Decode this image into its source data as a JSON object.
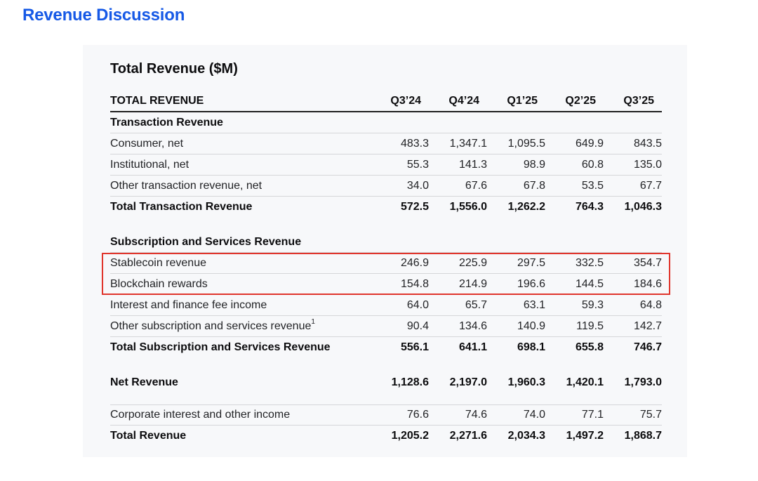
{
  "page": {
    "title": "Revenue Discussion",
    "title_color": "#1659e6"
  },
  "table": {
    "title": "Total Revenue ($M)",
    "header_label": "TOTAL REVENUE",
    "columns": [
      "Q3’24",
      "Q4’24",
      "Q1’25",
      "Q2’25",
      "Q3’25"
    ],
    "highlight_color": "#e0352c",
    "rows": [
      {
        "type": "section",
        "label": "Transaction Revenue"
      },
      {
        "type": "data",
        "label": "Consumer, net",
        "values": [
          "483.3",
          "1,347.1",
          "1,095.5",
          "649.9",
          "843.5"
        ]
      },
      {
        "type": "data",
        "label": "Institutional, net",
        "values": [
          "55.3",
          "141.3",
          "98.9",
          "60.8",
          "135.0"
        ]
      },
      {
        "type": "data",
        "label": "Other transaction revenue, net",
        "values": [
          "34.0",
          "67.6",
          "67.8",
          "53.5",
          "67.7"
        ]
      },
      {
        "type": "total",
        "label": "Total Transaction Revenue",
        "values": [
          "572.5",
          "1,556.0",
          "1,262.2",
          "764.3",
          "1,046.3"
        ]
      },
      {
        "type": "spacer"
      },
      {
        "type": "section",
        "label": "Subscription and Services Revenue"
      },
      {
        "type": "data",
        "label": "Stablecoin revenue",
        "values": [
          "246.9",
          "225.9",
          "297.5",
          "332.5",
          "354.7"
        ],
        "highlight": true
      },
      {
        "type": "data",
        "label": "Blockchain rewards",
        "values": [
          "154.8",
          "214.9",
          "196.6",
          "144.5",
          "184.6"
        ],
        "highlight": true
      },
      {
        "type": "data",
        "label": "Interest and finance fee income",
        "values": [
          "64.0",
          "65.7",
          "63.1",
          "59.3",
          "64.8"
        ]
      },
      {
        "type": "data",
        "label": "Other subscription and services revenue",
        "sup": "1",
        "values": [
          "90.4",
          "134.6",
          "140.9",
          "119.5",
          "142.7"
        ]
      },
      {
        "type": "total",
        "label": "Total Subscription and Services Revenue",
        "values": [
          "556.1",
          "641.1",
          "698.1",
          "655.8",
          "746.7"
        ]
      },
      {
        "type": "spacer"
      },
      {
        "type": "total",
        "label": "Net Revenue",
        "values": [
          "1,128.6",
          "2,197.0",
          "1,960.3",
          "1,420.1",
          "1,793.0"
        ]
      },
      {
        "type": "spacer_small"
      },
      {
        "type": "data",
        "label": "Corporate interest and other income",
        "values": [
          "76.6",
          "74.6",
          "74.0",
          "77.1",
          "75.7"
        ],
        "top_border": true
      },
      {
        "type": "total",
        "label": "Total Revenue",
        "values": [
          "1,205.2",
          "2,271.6",
          "2,034.3",
          "1,497.2",
          "1,868.7"
        ]
      }
    ]
  }
}
